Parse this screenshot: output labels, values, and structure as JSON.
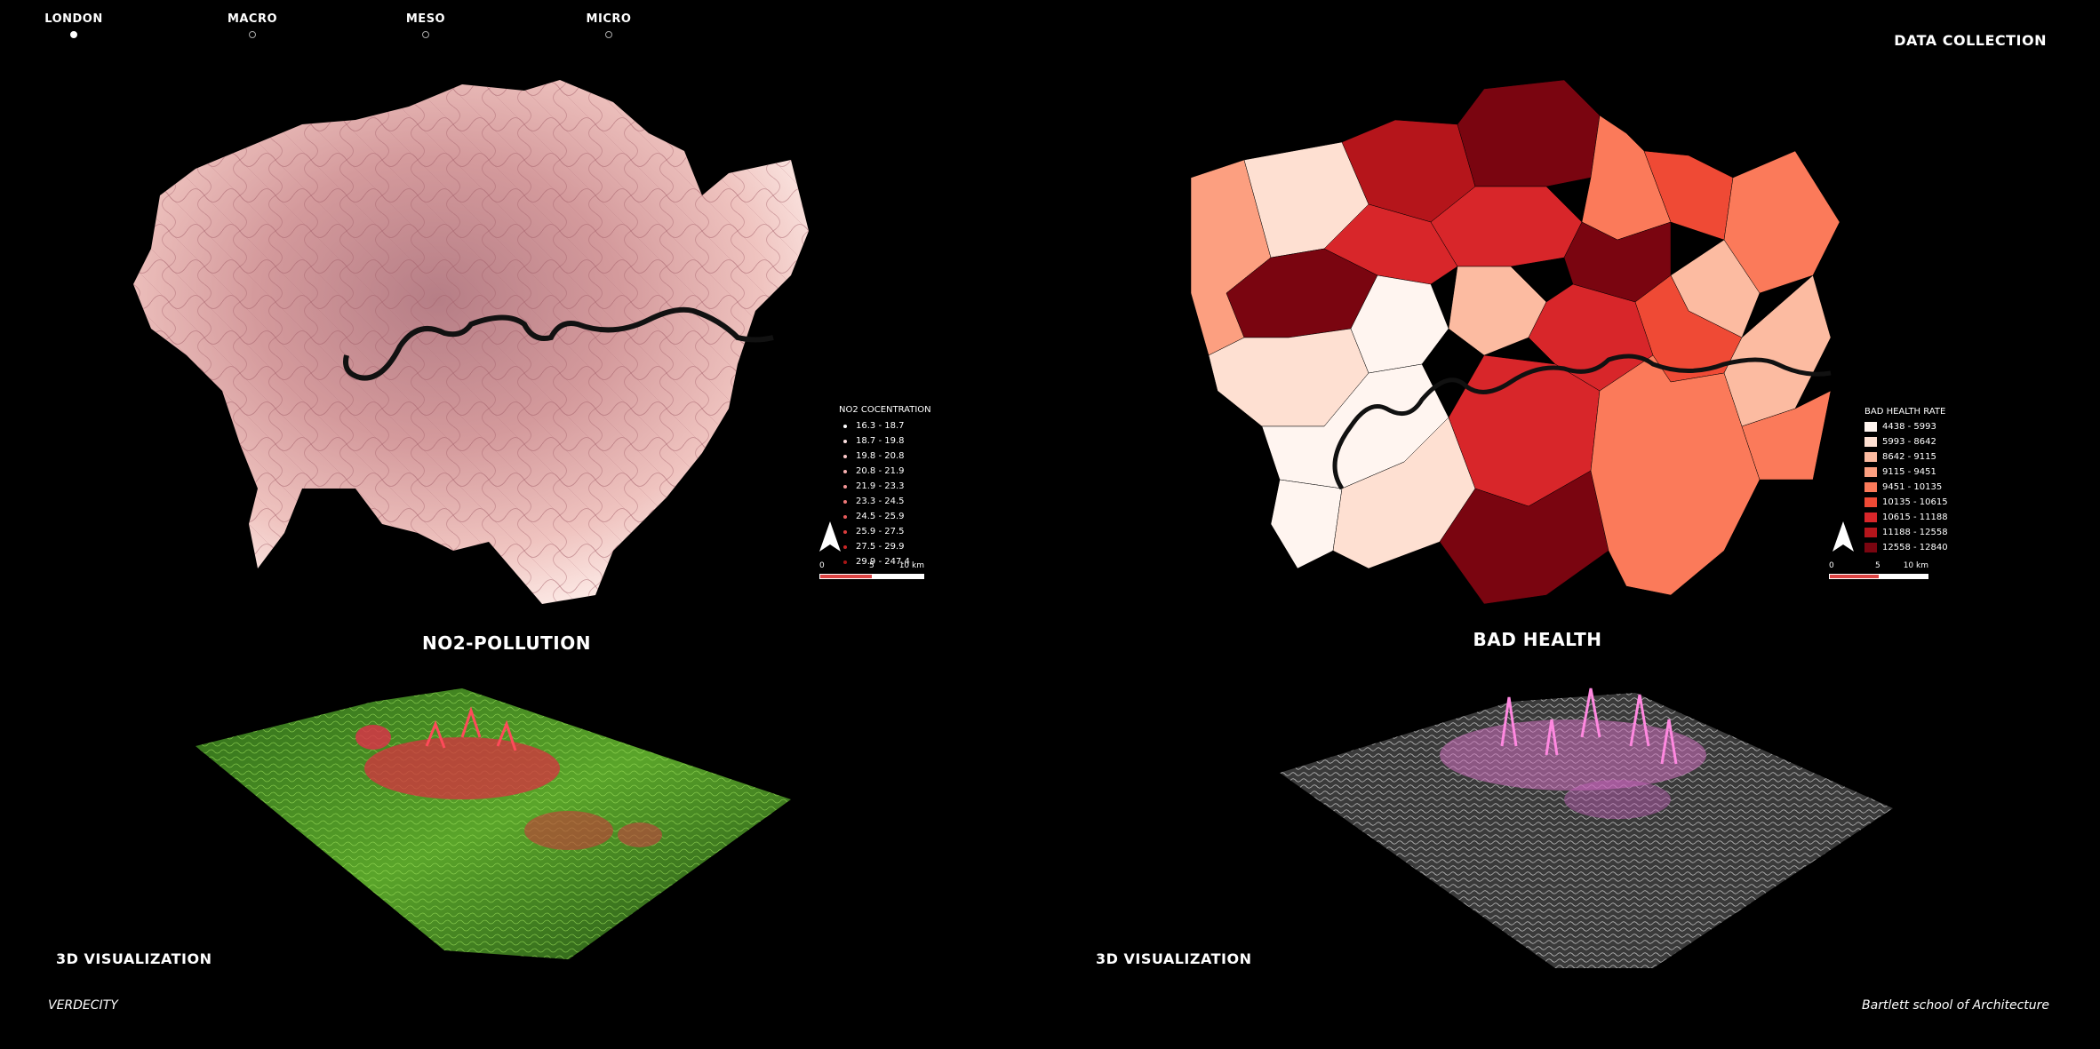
{
  "nav": {
    "items": [
      {
        "label": "LONDON",
        "active": true
      },
      {
        "label": "MACRO",
        "active": false
      },
      {
        "label": "MESO",
        "active": false
      },
      {
        "label": "MICRO",
        "active": false
      }
    ]
  },
  "header_right": "DATA COLLECTION",
  "left_map": {
    "title": "NO2-POLLUTION",
    "legend_title": "NO2 COCENTRATION",
    "legend": [
      {
        "label": "16.3 - 18.7",
        "color": "#ffffff"
      },
      {
        "label": "18.7 - 19.8",
        "color": "#fde0e0"
      },
      {
        "label": "19.8 - 20.8",
        "color": "#fbc8c8"
      },
      {
        "label": "20.8 - 21.9",
        "color": "#f8b0b0"
      },
      {
        "label": "21.9 - 23.3",
        "color": "#f49595"
      },
      {
        "label": "23.3 - 24.5",
        "color": "#ef7878"
      },
      {
        "label": "24.5 - 25.9",
        "color": "#e75a5a"
      },
      {
        "label": "25.9 - 27.5",
        "color": "#db3c3c"
      },
      {
        "label": "27.5 - 29.9",
        "color": "#c92626"
      },
      {
        "label": "29.9 - 247.4",
        "color": "#a81515"
      }
    ],
    "scale": {
      "start": "0",
      "mid": "5",
      "end": "10 km"
    }
  },
  "right_map": {
    "title": "BAD HEALTH",
    "legend_title": "BAD HEALTH RATE",
    "legend": [
      {
        "label": "4438 - 5993",
        "color": "#fff5f0"
      },
      {
        "label": "5993 - 8642",
        "color": "#fee0d2"
      },
      {
        "label": "8642 - 9115",
        "color": "#fcbba1"
      },
      {
        "label": "9115 - 9451",
        "color": "#fc9f80"
      },
      {
        "label": "9451 - 10135",
        "color": "#fb7a5a"
      },
      {
        "label": "10135 - 10615",
        "color": "#ef4a35"
      },
      {
        "label": "10615 - 11188",
        "color": "#d8262a"
      },
      {
        "label": "11188 - 12558",
        "color": "#b5151b"
      },
      {
        "label": "12558 - 12840",
        "color": "#7a0510"
      }
    ],
    "scale": {
      "start": "0",
      "mid": "5",
      "end": "10 km"
    }
  },
  "viz_left_label": "3D VISUALIZATION",
  "viz_right_label": "3D VISUALIZATION",
  "footer_left": "VERDECITY",
  "footer_right": "Bartlett school of Architecture"
}
